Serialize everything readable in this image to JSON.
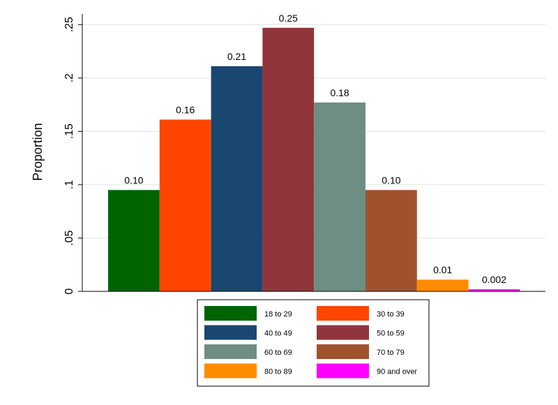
{
  "chart_data": {
    "type": "bar",
    "ylabel": "Proportion",
    "xlabel": "",
    "ylim": [
      0,
      0.26
    ],
    "yticks": [
      {
        "value": 0,
        "label": "0"
      },
      {
        "value": 0.05,
        "label": ".05"
      },
      {
        "value": 0.1,
        "label": ".1"
      },
      {
        "value": 0.15,
        "label": ".15"
      },
      {
        "value": 0.2,
        "label": ".2"
      },
      {
        "value": 0.25,
        "label": ".25"
      }
    ],
    "grid": true,
    "legend_position": "bottom",
    "bars": [
      {
        "name": "18 to 29",
        "value": 0.095,
        "label": "0.10",
        "color": "#006400"
      },
      {
        "name": "30 to 39",
        "value": 0.161,
        "label": "0.16",
        "color": "#FF4500"
      },
      {
        "name": "40 to 49",
        "value": 0.211,
        "label": "0.21",
        "color": "#1A476F"
      },
      {
        "name": "50 to 59",
        "value": 0.247,
        "label": "0.25",
        "color": "#90353B"
      },
      {
        "name": "60 to 69",
        "value": 0.177,
        "label": "0.18",
        "color": "#6E8E84"
      },
      {
        "name": "70 to 79",
        "value": 0.095,
        "label": "0.10",
        "color": "#A0522D"
      },
      {
        "name": "80 to 89",
        "value": 0.011,
        "label": "0.01",
        "color": "#FF8C00"
      },
      {
        "name": "90 and over",
        "value": 0.002,
        "label": "0.002",
        "color": "#FF00FF"
      }
    ]
  }
}
